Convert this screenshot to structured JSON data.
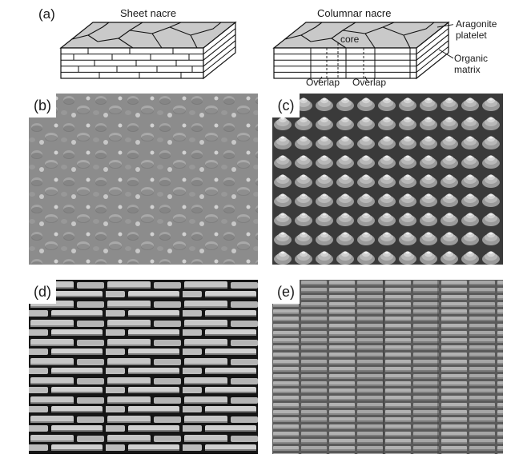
{
  "panels": {
    "a": "(a)",
    "b": "(b)",
    "c": "(c)",
    "d": "(d)",
    "e": "(e)"
  },
  "schematic": {
    "sheet_title": "Sheet nacre",
    "columnar_title": "Columnar nacre",
    "aragonite_label_1": "Aragonite",
    "aragonite_label_2": "platelet",
    "core_label": "core",
    "organic_label_1": "Organic",
    "organic_label_2": "matrix",
    "overlap_left": "Overlap",
    "overlap_right": "Overlap"
  },
  "colors": {
    "micrograph_gray": "#8e8e8e",
    "dark_gap": "#1c1c1c",
    "platelet_light": "#c8c8c8"
  }
}
